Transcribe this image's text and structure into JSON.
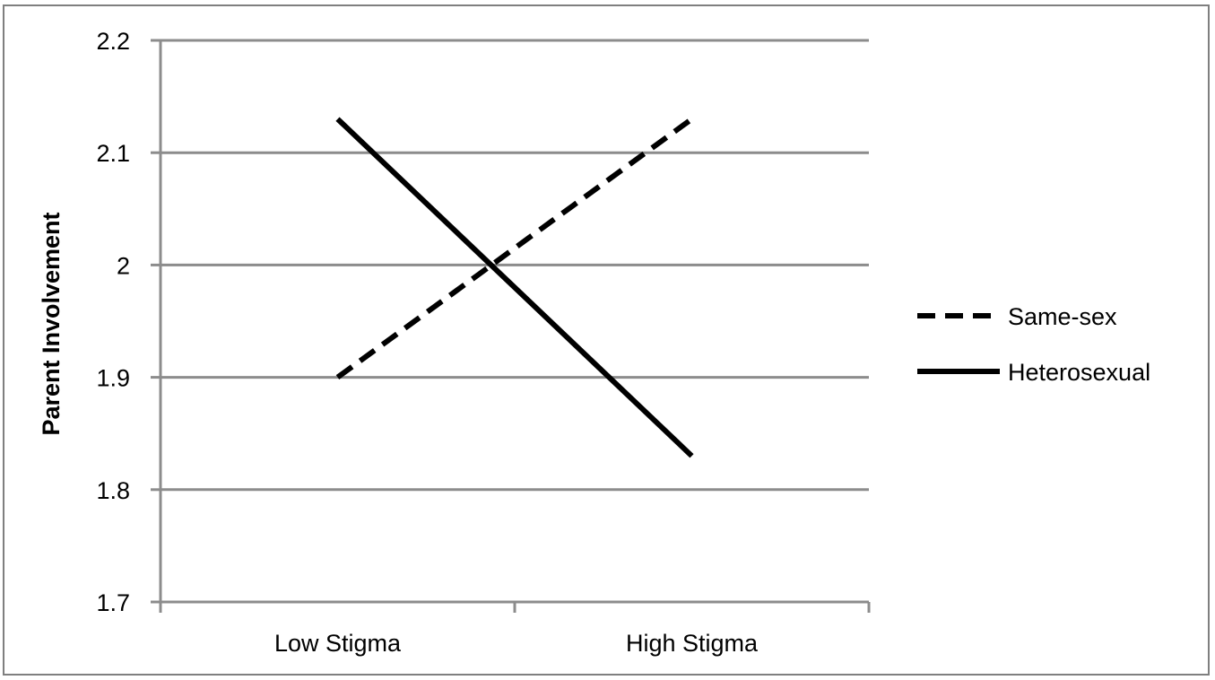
{
  "chart_data": {
    "type": "line",
    "title": "",
    "xlabel": "",
    "ylabel": "Parent Involvement",
    "categories": [
      "Low Stigma",
      "High Stigma"
    ],
    "ylim": [
      1.7,
      2.2
    ],
    "yticks": [
      "1.7",
      "1.8",
      "1.9",
      "2",
      "2.1",
      "2.2"
    ],
    "grid": true,
    "legend_position": "right",
    "series": [
      {
        "name": "Same-sex",
        "values": [
          1.9,
          2.13
        ],
        "style": "dashed",
        "color": "#000000"
      },
      {
        "name": "Heterosexual",
        "values": [
          2.13,
          1.83
        ],
        "style": "solid",
        "color": "#000000"
      }
    ],
    "gridline_color": "#8c8c8c",
    "border_color": "#7f7f7f"
  }
}
